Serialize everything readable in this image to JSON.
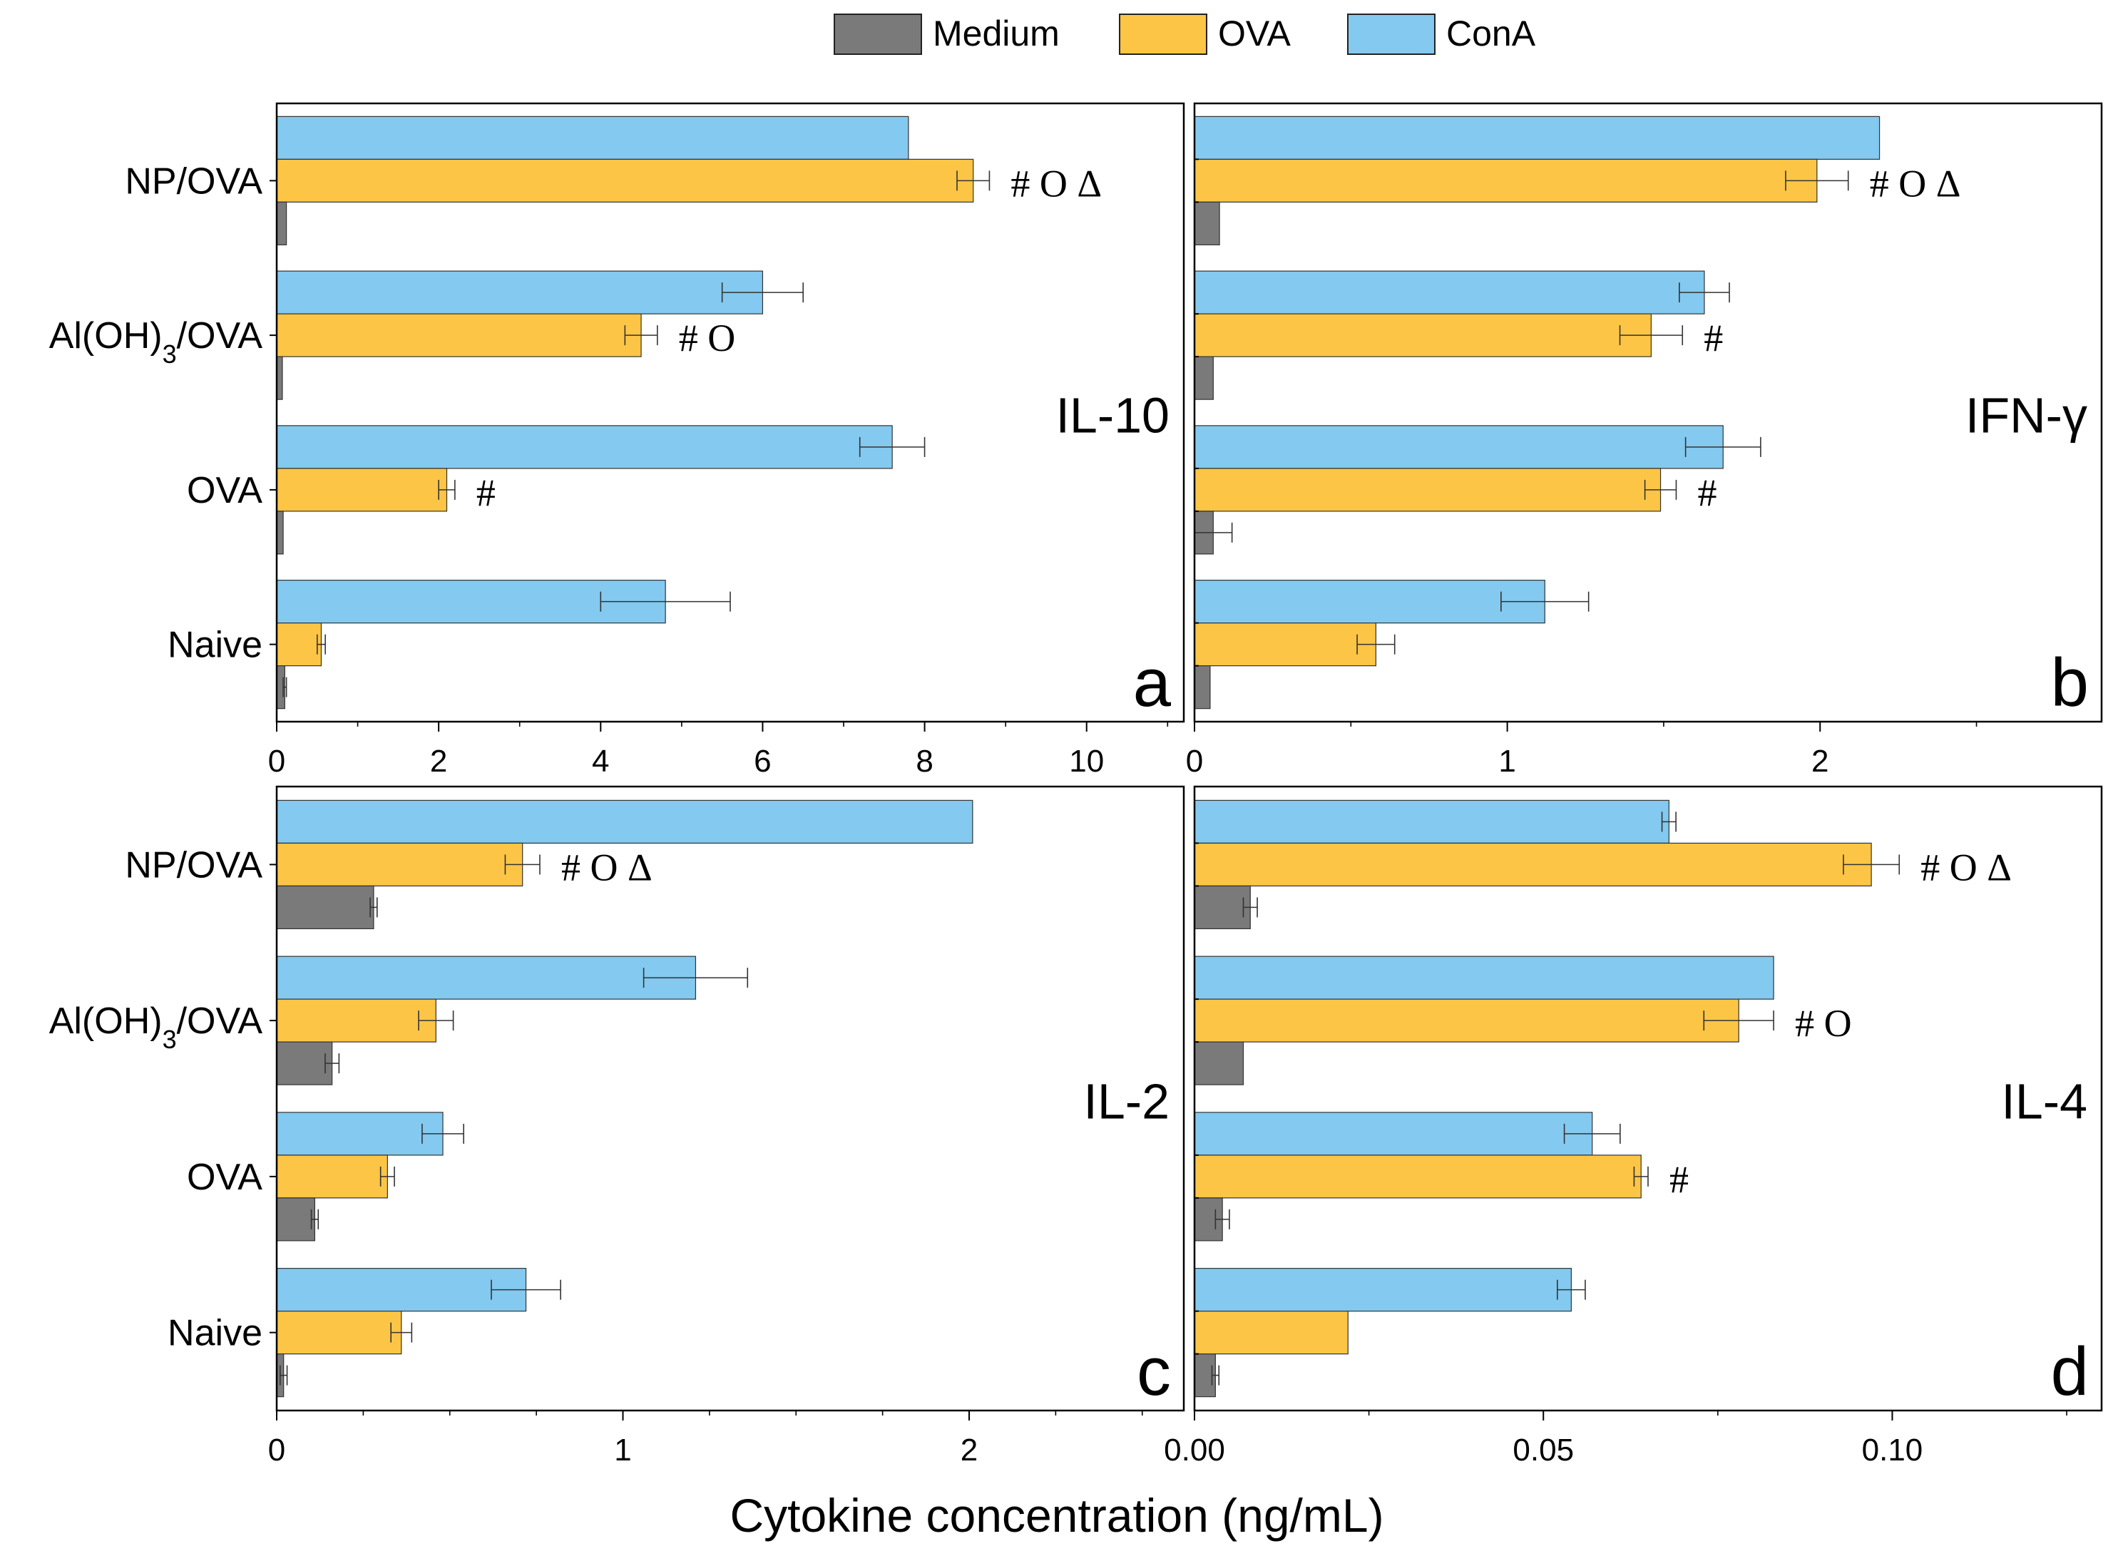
{
  "figure": {
    "xlabel": "Cytokine concentration (ng/mL)",
    "legend": [
      {
        "name": "Medium",
        "color": "#7a7a7a"
      },
      {
        "name": "OVA",
        "color": "#fdc545"
      },
      {
        "name": "ConA",
        "color": "#84c9ef"
      }
    ]
  },
  "chart_data": [
    {
      "type": "bar",
      "orientation": "horizontal",
      "panel_letter": "a",
      "cytokine": "IL-10",
      "groups": [
        "NP/OVA",
        "Al(OH)3/OVA",
        "OVA",
        "Naive"
      ],
      "series": [
        {
          "name": "ConA",
          "values": [
            7.8,
            6.0,
            7.6,
            4.8
          ],
          "errors": [
            0,
            0.5,
            0.4,
            0.8
          ]
        },
        {
          "name": "OVA",
          "values": [
            8.6,
            4.5,
            2.1,
            0.55
          ],
          "errors": [
            0.2,
            0.2,
            0.1,
            0.05
          ]
        },
        {
          "name": "Medium",
          "values": [
            0.12,
            0.07,
            0.08,
            0.1
          ],
          "errors": [
            0,
            0,
            0,
            0.02
          ]
        }
      ],
      "annotations": [
        "# O Δ",
        "# O",
        "#",
        ""
      ],
      "xlim": [
        0,
        11.2
      ],
      "xticks": [
        0,
        2,
        4,
        6,
        8,
        10
      ],
      "xticklabels": [
        "0",
        "2",
        "4",
        "6",
        "8",
        "10"
      ],
      "minor_step": 1
    },
    {
      "type": "bar",
      "orientation": "horizontal",
      "panel_letter": "b",
      "cytokine": "IFN-γ",
      "groups": [
        "NP/OVA",
        "Al(OH)3/OVA",
        "OVA",
        "Naive"
      ],
      "series": [
        {
          "name": "ConA",
          "values": [
            2.19,
            1.63,
            1.69,
            1.12
          ],
          "errors": [
            0,
            0.08,
            0.12,
            0.14
          ]
        },
        {
          "name": "OVA",
          "values": [
            1.99,
            1.46,
            1.49,
            0.58
          ],
          "errors": [
            0.1,
            0.1,
            0.05,
            0.06
          ]
        },
        {
          "name": "Medium",
          "values": [
            0.08,
            0.06,
            0.06,
            0.05
          ],
          "errors": [
            0,
            0,
            0.06,
            0
          ]
        }
      ],
      "annotations": [
        "# O Δ",
        "#",
        "#",
        ""
      ],
      "xlim": [
        0,
        2.9
      ],
      "xticks": [
        0,
        1,
        2
      ],
      "xticklabels": [
        "0",
        "1",
        "2"
      ],
      "minor_step": 0.5
    },
    {
      "type": "bar",
      "orientation": "horizontal",
      "panel_letter": "c",
      "cytokine": "IL-2",
      "groups": [
        "NP/OVA",
        "Al(OH)3/OVA",
        "OVA",
        "Naive"
      ],
      "series": [
        {
          "name": "ConA",
          "values": [
            2.01,
            1.21,
            0.48,
            0.72
          ],
          "errors": [
            0,
            0.15,
            0.06,
            0.1
          ]
        },
        {
          "name": "OVA",
          "values": [
            0.71,
            0.46,
            0.32,
            0.36
          ],
          "errors": [
            0.05,
            0.05,
            0.02,
            0.03
          ]
        },
        {
          "name": "Medium",
          "values": [
            0.28,
            0.16,
            0.11,
            0.02
          ],
          "errors": [
            0.01,
            0.02,
            0.01,
            0.01
          ]
        }
      ],
      "annotations": [
        "# O Δ",
        "",
        "",
        ""
      ],
      "xlim": [
        0,
        2.62
      ],
      "xticks": [
        0,
        1,
        2
      ],
      "xticklabels": [
        "0",
        "1",
        "2"
      ],
      "minor_step": 0.25
    },
    {
      "type": "bar",
      "orientation": "horizontal",
      "panel_letter": "d",
      "cytokine": "IL-4",
      "groups": [
        "NP/OVA",
        "Al(OH)3/OVA",
        "OVA",
        "Naive"
      ],
      "series": [
        {
          "name": "ConA",
          "values": [
            0.068,
            0.083,
            0.057,
            0.054
          ],
          "errors": [
            0.001,
            0,
            0.004,
            0.002
          ]
        },
        {
          "name": "OVA",
          "values": [
            0.097,
            0.078,
            0.064,
            0.022
          ],
          "errors": [
            0.004,
            0.005,
            0.001,
            0
          ]
        },
        {
          "name": "Medium",
          "values": [
            0.008,
            0.007,
            0.004,
            0.003
          ],
          "errors": [
            0.001,
            0,
            0.001,
            0.0005
          ]
        }
      ],
      "annotations": [
        "# O Δ",
        "# O",
        "#",
        ""
      ],
      "xlim": [
        0,
        0.13
      ],
      "xticks": [
        0,
        0.05,
        0.1
      ],
      "xticklabels": [
        "0.00",
        "0.05",
        "0.10"
      ],
      "minor_step": 0.025
    }
  ]
}
